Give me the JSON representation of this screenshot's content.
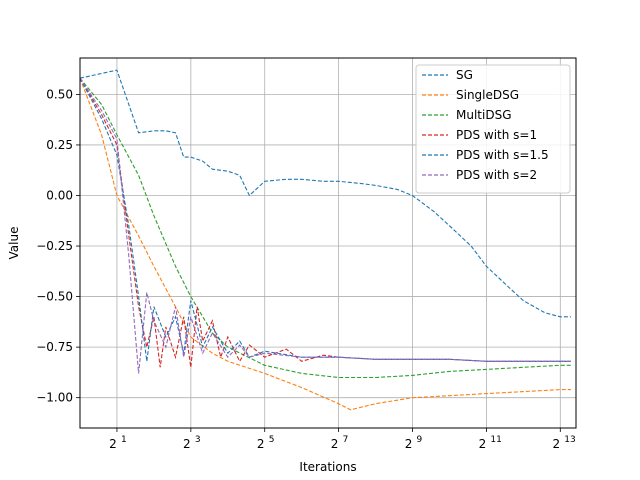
{
  "chart_data": {
    "type": "line",
    "title": "",
    "xlabel": "Iterations",
    "ylabel": "Value",
    "xscale": "log2",
    "xlim": [
      1,
      11000
    ],
    "ylim": [
      -1.15,
      0.68
    ],
    "grid": true,
    "legend_position": "top-right",
    "x_ticks": [
      {
        "value": 2,
        "base": "2",
        "exp": "1"
      },
      {
        "value": 8,
        "base": "2",
        "exp": "3"
      },
      {
        "value": 32,
        "base": "2",
        "exp": "5"
      },
      {
        "value": 128,
        "base": "2",
        "exp": "7"
      },
      {
        "value": 512,
        "base": "2",
        "exp": "9"
      },
      {
        "value": 2048,
        "base": "2",
        "exp": "11"
      },
      {
        "value": 8192,
        "base": "2",
        "exp": "13"
      }
    ],
    "y_ticks": [
      {
        "value": 0.5,
        "label": "0.50"
      },
      {
        "value": 0.25,
        "label": "0.25"
      },
      {
        "value": 0.0,
        "label": "0.00"
      },
      {
        "value": -0.25,
        "label": "−0.25"
      },
      {
        "value": -0.5,
        "label": "−0.50"
      },
      {
        "value": -0.75,
        "label": "−0.75"
      },
      {
        "value": -1.0,
        "label": "−1.00"
      }
    ],
    "series": [
      {
        "name": "SG",
        "color": "#1f77b4",
        "x": [
          1,
          2,
          2.5,
          3,
          4,
          5,
          6,
          7,
          8,
          10,
          12,
          16,
          20,
          24,
          32,
          48,
          64,
          96,
          128,
          192,
          256,
          384,
          512,
          768,
          1024,
          1536,
          2048,
          3072,
          4096,
          6144,
          8192,
          10000
        ],
        "y": [
          0.58,
          0.62,
          0.45,
          0.31,
          0.32,
          0.32,
          0.31,
          0.19,
          0.19,
          0.17,
          0.13,
          0.12,
          0.1,
          0.0,
          0.07,
          0.08,
          0.08,
          0.07,
          0.07,
          0.06,
          0.05,
          0.03,
          0.0,
          -0.08,
          -0.15,
          -0.25,
          -0.35,
          -0.45,
          -0.52,
          -0.58,
          -0.6,
          -0.6
        ]
      },
      {
        "name": "SingleDSG",
        "color": "#ff7f0e",
        "x": [
          1,
          1.5,
          2,
          3,
          4,
          6,
          8,
          12,
          16,
          32,
          64,
          128,
          160,
          256,
          512,
          1024,
          2048,
          4096,
          8192,
          10000
        ],
        "y": [
          0.58,
          0.3,
          0.0,
          -0.2,
          -0.35,
          -0.55,
          -0.7,
          -0.78,
          -0.82,
          -0.88,
          -0.95,
          -1.03,
          -1.06,
          -1.03,
          -1.0,
          -0.99,
          -0.98,
          -0.97,
          -0.96,
          -0.96
        ]
      },
      {
        "name": "MultiDSG",
        "color": "#2ca02c",
        "x": [
          1,
          1.5,
          2,
          3,
          4,
          6,
          8,
          12,
          16,
          32,
          64,
          128,
          256,
          512,
          1024,
          2048,
          4096,
          8192,
          10000
        ],
        "y": [
          0.58,
          0.45,
          0.3,
          0.1,
          -0.1,
          -0.35,
          -0.5,
          -0.68,
          -0.75,
          -0.84,
          -0.88,
          -0.9,
          -0.9,
          -0.89,
          -0.87,
          -0.86,
          -0.85,
          -0.84,
          -0.84
        ]
      },
      {
        "name": "PDS with s=1",
        "color": "#d62728",
        "x": [
          1,
          1.5,
          2,
          2.5,
          3,
          3.5,
          4,
          4.5,
          5,
          6,
          7,
          8,
          9,
          10,
          12,
          14,
          16,
          20,
          24,
          32,
          48,
          64,
          96,
          128,
          256,
          512,
          1024,
          2048,
          4096,
          8192,
          10000
        ],
        "y": [
          0.58,
          0.4,
          0.25,
          -0.2,
          -0.55,
          -0.75,
          -0.6,
          -0.85,
          -0.65,
          -0.8,
          -0.6,
          -0.85,
          -0.55,
          -0.72,
          -0.62,
          -0.8,
          -0.7,
          -0.82,
          -0.74,
          -0.8,
          -0.76,
          -0.82,
          -0.79,
          -0.8,
          -0.81,
          -0.81,
          -0.81,
          -0.82,
          -0.82,
          -0.82,
          -0.82
        ]
      },
      {
        "name": "PDS with s=1.5",
        "color": "#1f77b4",
        "x": [
          1,
          1.5,
          2,
          2.5,
          3,
          3.5,
          4,
          5,
          6,
          7,
          8,
          10,
          12,
          16,
          20,
          24,
          32,
          64,
          128,
          256,
          512,
          1024,
          2048,
          4096,
          8192,
          10000
        ],
        "y": [
          0.58,
          0.38,
          0.2,
          -0.15,
          -0.5,
          -0.82,
          -0.55,
          -0.7,
          -0.6,
          -0.78,
          -0.52,
          -0.75,
          -0.65,
          -0.78,
          -0.72,
          -0.8,
          -0.77,
          -0.8,
          -0.8,
          -0.81,
          -0.81,
          -0.81,
          -0.82,
          -0.82,
          -0.82,
          -0.82
        ]
      },
      {
        "name": "PDS with s=2",
        "color": "#9467bd",
        "x": [
          1,
          1.5,
          2,
          2.5,
          3,
          3.5,
          4,
          5,
          6,
          7,
          8,
          10,
          12,
          16,
          20,
          24,
          32,
          64,
          128,
          256,
          512,
          1024,
          2048,
          4096,
          8192,
          10000
        ],
        "y": [
          0.58,
          0.42,
          0.28,
          -0.3,
          -0.88,
          -0.48,
          -0.62,
          -0.75,
          -0.55,
          -0.8,
          -0.6,
          -0.78,
          -0.68,
          -0.8,
          -0.74,
          -0.8,
          -0.78,
          -0.8,
          -0.8,
          -0.81,
          -0.81,
          -0.81,
          -0.82,
          -0.82,
          -0.82,
          -0.82
        ]
      }
    ]
  }
}
